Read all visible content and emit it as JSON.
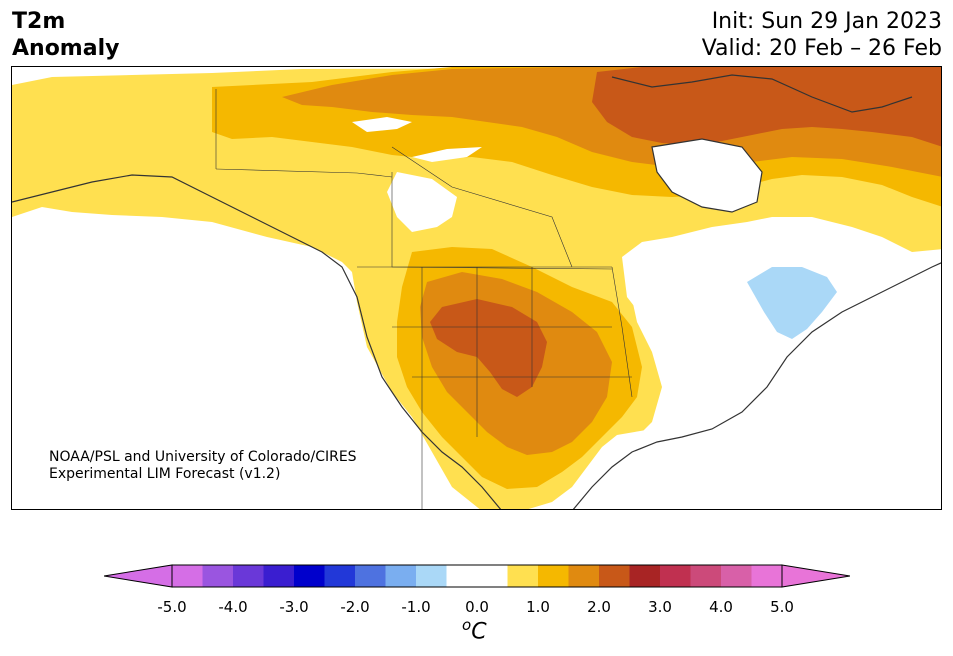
{
  "header": {
    "title_line1": "T2m",
    "title_line2": "Anomaly",
    "init": "Init: Sun 29 Jan 2023",
    "valid": "Valid: 20 Feb – 26 Feb"
  },
  "credit": {
    "line1": "NOAA/PSL and University of Colorado/CIRES",
    "line2": "Experimental LIM Forecast (v1.2)"
  },
  "colorbar": {
    "ticks": [
      "-5.0",
      "-4.0",
      "-3.0",
      "-2.0",
      "-1.0",
      "0.0",
      "1.0",
      "2.0",
      "3.0",
      "4.0",
      "5.0"
    ],
    "unit_super": "o",
    "unit_main": "C",
    "colors": [
      "#d56ee6",
      "#9a55e0",
      "#6a38d8",
      "#3a1ed0",
      "#0000cc",
      "#2238d8",
      "#4e72e0",
      "#7aaef0",
      "#aad8f7",
      "#ffffff",
      "#ffffff",
      "#ffe050",
      "#f5b800",
      "#e08a10",
      "#c85818",
      "#a82424",
      "#c03050",
      "#cc4a7a",
      "#d860a8",
      "#e874d8"
    ],
    "under_color": "#d56ee6",
    "over_color": "#e874d8"
  },
  "map": {
    "region": "North America",
    "anomaly_colors": {
      "0.5-1.0": "#ffe050",
      "1.0-1.5": "#f5b800",
      "1.5-2.0": "#e08a10",
      "2.0-2.5": "#c85818",
      "-1.0--0.5": "#aad8f7"
    }
  }
}
